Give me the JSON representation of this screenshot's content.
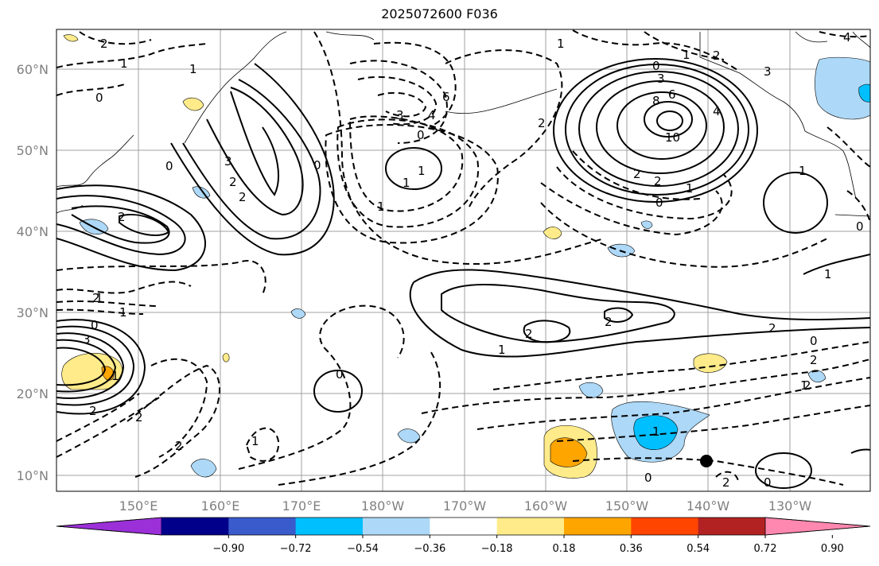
{
  "title": "2025072600 F036",
  "latitude_labels": [
    "60°N",
    "50°N",
    "40°N",
    "30°N",
    "20°N",
    "10°N"
  ],
  "longitude_labels": [
    "150°E",
    "160°E",
    "170°E",
    "180°W",
    "170°W",
    "160°W",
    "150°W",
    "140°W",
    "130°W"
  ],
  "colorbar": {
    "tick_labels": [
      "−0.90",
      "−0.72",
      "−0.54",
      "−0.36",
      "−0.18",
      "0.18",
      "0.36",
      "0.54",
      "0.72",
      "0.90"
    ],
    "colors": [
      "#9b30d9",
      "#00008b",
      "#3a5bcc",
      "#00bfff",
      "#add8f7",
      "#ffffff",
      "#ffeb8a",
      "#ffa500",
      "#ff4500",
      "#b22222",
      "#ff88b0"
    ]
  },
  "contour_labels": [
    "2",
    "1",
    "0",
    "2",
    "1",
    "0",
    "3",
    "2",
    "2",
    "0",
    "1",
    "3",
    "4",
    "6",
    "0",
    "1",
    "1",
    "2",
    "1",
    "0",
    "1",
    "10",
    "8",
    "6",
    "4",
    "2",
    "3",
    "2",
    "1",
    "0",
    "2",
    "1",
    "1",
    "0",
    "1",
    "2",
    "2",
    "1",
    "3",
    "2",
    "0",
    "1",
    "2",
    "2",
    "1",
    "2",
    "0",
    "2",
    "2",
    "0",
    "1",
    "1",
    "0",
    "0",
    "1",
    "2",
    "2",
    "4",
    "3"
  ]
}
